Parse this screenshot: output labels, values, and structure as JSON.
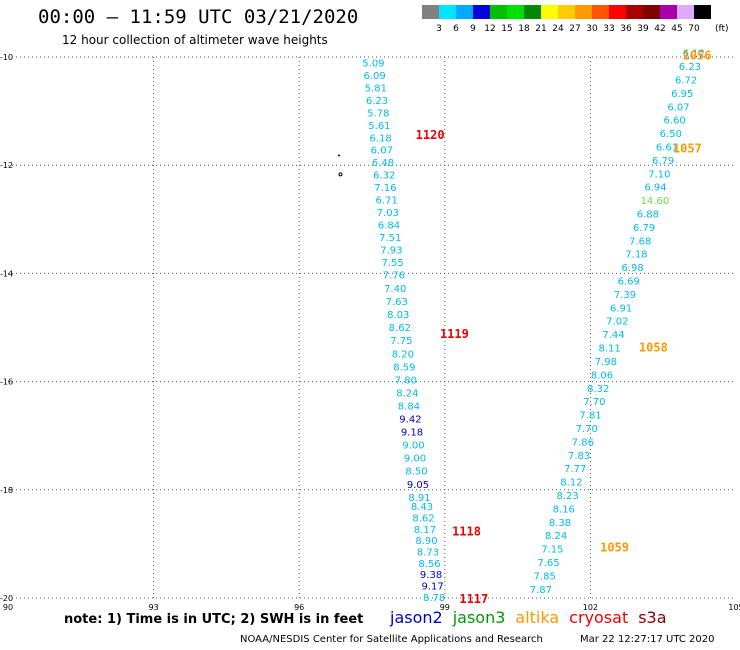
{
  "header": {
    "title": "00:00 – 11:59 UTC 03/21/2020",
    "subtitle": "12 hour collection of altimeter wave heights"
  },
  "color_scale": {
    "labels": [
      "3",
      "6",
      "9",
      "12",
      "15",
      "18",
      "21",
      "24",
      "27",
      "30",
      "33",
      "36",
      "39",
      "42",
      "45",
      "70"
    ],
    "unit": "(ft)",
    "colors": [
      "#808080",
      "#00e5ff",
      "#00aaff",
      "#0000dd",
      "#00c000",
      "#00e000",
      "#008800",
      "#ffff00",
      "#ffcc00",
      "#ff9900",
      "#ff5500",
      "#ff0000",
      "#aa0000",
      "#800000",
      "#aa00aa",
      "#ddaaff",
      "#000000"
    ]
  },
  "map": {
    "lon_ticks": [
      "90",
      "93",
      "96",
      "99",
      "102",
      "105"
    ],
    "lat_ticks": [
      "-10",
      "-12",
      "-14",
      "-16",
      "-18",
      "-20"
    ],
    "lon_range": [
      90,
      105
    ],
    "lat_range": [
      -10,
      -20
    ],
    "grid": true,
    "passes": [
      {
        "id": "1120",
        "label_color": "#ee0000",
        "readings": [
          {
            "v": "5.09",
            "c": "#00bbee"
          },
          {
            "v": "6.09",
            "c": "#00bbee"
          },
          {
            "v": "5.81",
            "c": "#00bbee"
          },
          {
            "v": "6.23",
            "c": "#00bbee"
          },
          {
            "v": "5.78",
            "c": "#00bbee"
          },
          {
            "v": "5.61",
            "c": "#00bbee"
          },
          {
            "v": "6.18",
            "c": "#00bbee"
          },
          {
            "v": "6.07",
            "c": "#00bbee"
          },
          {
            "v": "6.48",
            "c": "#00bbee"
          },
          {
            "v": "6.32",
            "c": "#00bbee"
          },
          {
            "v": "7.16",
            "c": "#00bbee"
          },
          {
            "v": "6.71",
            "c": "#00bbee"
          },
          {
            "v": "7.03",
            "c": "#00bbee"
          },
          {
            "v": "6.84",
            "c": "#00bbee"
          },
          {
            "v": "7.51",
            "c": "#00bbee"
          },
          {
            "v": "7.93",
            "c": "#00bbee"
          },
          {
            "v": "7.55",
            "c": "#00bbee"
          },
          {
            "v": "7.76",
            "c": "#00bbee"
          }
        ]
      },
      {
        "id": "1119",
        "label_color": "#ee0000",
        "readings": [
          {
            "v": "7.40",
            "c": "#00bbee"
          },
          {
            "v": "7.63",
            "c": "#00bbee"
          },
          {
            "v": "8.03",
            "c": "#00bbee"
          },
          {
            "v": "8.62",
            "c": "#00bbee"
          },
          {
            "v": "7.75",
            "c": "#00bbee"
          },
          {
            "v": "8.20",
            "c": "#00bbee"
          },
          {
            "v": "8.59",
            "c": "#00bbee"
          },
          {
            "v": "7.80",
            "c": "#00bbee"
          },
          {
            "v": "8.24",
            "c": "#00bbee"
          },
          {
            "v": "8.84",
            "c": "#00bbee"
          },
          {
            "v": "9.42",
            "c": "#0000cc"
          },
          {
            "v": "9.18",
            "c": "#0000cc"
          },
          {
            "v": "9.00",
            "c": "#00bbee"
          },
          {
            "v": "9.00",
            "c": "#00bbee"
          },
          {
            "v": "8.50",
            "c": "#00bbee"
          },
          {
            "v": "9.05",
            "c": "#0000cc"
          },
          {
            "v": "8.91",
            "c": "#00bbee"
          }
        ]
      },
      {
        "id": "1118",
        "label_color": "#ee0000",
        "readings": [
          {
            "v": "8.43",
            "c": "#00bbee"
          },
          {
            "v": "8.62",
            "c": "#00bbee"
          },
          {
            "v": "8.17",
            "c": "#00bbee"
          },
          {
            "v": "8.90",
            "c": "#00bbee"
          },
          {
            "v": "8.73",
            "c": "#00bbee"
          },
          {
            "v": "8.56",
            "c": "#00bbee"
          },
          {
            "v": "9.38",
            "c": "#0000cc"
          },
          {
            "v": "9.17",
            "c": "#0000cc"
          },
          {
            "v": "8.78",
            "c": "#00bbee"
          }
        ]
      },
      {
        "id": "1056",
        "label_color": "#ff9900",
        "readings": [
          {
            "v": "6.12",
            "c": "#00bbee"
          },
          {
            "v": "6.23",
            "c": "#00bbee"
          },
          {
            "v": "6.72",
            "c": "#00bbee"
          },
          {
            "v": "6.95",
            "c": "#00bbee"
          },
          {
            "v": "6.07",
            "c": "#00bbee"
          },
          {
            "v": "6.60",
            "c": "#00bbee"
          },
          {
            "v": "6.50",
            "c": "#00bbee"
          },
          {
            "v": "6.61",
            "c": "#00bbee"
          },
          {
            "v": "6.79",
            "c": "#00bbee"
          },
          {
            "v": "7.10",
            "c": "#00bbee"
          },
          {
            "v": "6.94",
            "c": "#00bbee"
          },
          {
            "v": "14.60",
            "c": "#66dd44"
          },
          {
            "v": "6.88",
            "c": "#00bbee"
          },
          {
            "v": "6.79",
            "c": "#00bbee"
          },
          {
            "v": "7.68",
            "c": "#00bbee"
          },
          {
            "v": "7.18",
            "c": "#00bbee"
          },
          {
            "v": "6.98",
            "c": "#00bbee"
          },
          {
            "v": "6.69",
            "c": "#00bbee"
          },
          {
            "v": "7.39",
            "c": "#00bbee"
          },
          {
            "v": "6.91",
            "c": "#00bbee"
          },
          {
            "v": "7.02",
            "c": "#00bbee"
          },
          {
            "v": "7.44",
            "c": "#00bbee"
          },
          {
            "v": "8.11",
            "c": "#00bbee"
          },
          {
            "v": "7.98",
            "c": "#00bbee"
          },
          {
            "v": "8.06",
            "c": "#00bbee"
          },
          {
            "v": "8.32",
            "c": "#00bbee"
          },
          {
            "v": "7.70",
            "c": "#00bbee"
          },
          {
            "v": "7.81",
            "c": "#00bbee"
          },
          {
            "v": "7.70",
            "c": "#00bbee"
          },
          {
            "v": "7.86",
            "c": "#00bbee"
          },
          {
            "v": "7.83",
            "c": "#00bbee"
          },
          {
            "v": "7.77",
            "c": "#00bbee"
          },
          {
            "v": "8.12",
            "c": "#00bbee"
          },
          {
            "v": "8.23",
            "c": "#00bbee"
          },
          {
            "v": "8.16",
            "c": "#00bbee"
          },
          {
            "v": "8.38",
            "c": "#00bbee"
          },
          {
            "v": "8.24",
            "c": "#00bbee"
          },
          {
            "v": "7.15",
            "c": "#00bbee"
          },
          {
            "v": "7.65",
            "c": "#00bbee"
          },
          {
            "v": "7.85",
            "c": "#00bbee"
          },
          {
            "v": "7.87",
            "c": "#00bbee"
          }
        ]
      }
    ],
    "pass_labels": [
      {
        "text": "1120",
        "color": "#ee0000",
        "lon": 98.4,
        "lat": -11.42
      },
      {
        "text": "1119",
        "color": "#ee0000",
        "lon": 98.9,
        "lat": -15.1
      },
      {
        "text": "1118",
        "color": "#ee0000",
        "lon": 99.15,
        "lat": -18.75
      },
      {
        "text": "1117",
        "color": "#ee0000",
        "lon": 99.3,
        "lat": -20.0
      },
      {
        "text": "1056",
        "color": "#ff9900",
        "lon": 103.9,
        "lat": -9.95
      },
      {
        "text": "1057",
        "color": "#ff9900",
        "lon": 103.7,
        "lat": -11.67
      },
      {
        "text": "1058",
        "color": "#ff9900",
        "lon": 103.0,
        "lat": -15.35
      },
      {
        "text": "1059",
        "color": "#ff9900",
        "lon": 102.2,
        "lat": -19.05
      }
    ]
  },
  "footer": {
    "note": "note: 1) Time is in UTC; 2) SWH is in feet",
    "satellites": [
      {
        "name": "jason2",
        "color": "#0000cc"
      },
      {
        "name": "jason3",
        "color": "#009900"
      },
      {
        "name": "altika",
        "color": "#ff9900"
      },
      {
        "name": "cryosat",
        "color": "#ee0000"
      },
      {
        "name": "s3a",
        "color": "#880000"
      }
    ],
    "credit": "NOAA/NESDIS Center for Satellite Applications and Research",
    "timestamp": "Mar 22 12:27:17 UTC 2020"
  }
}
